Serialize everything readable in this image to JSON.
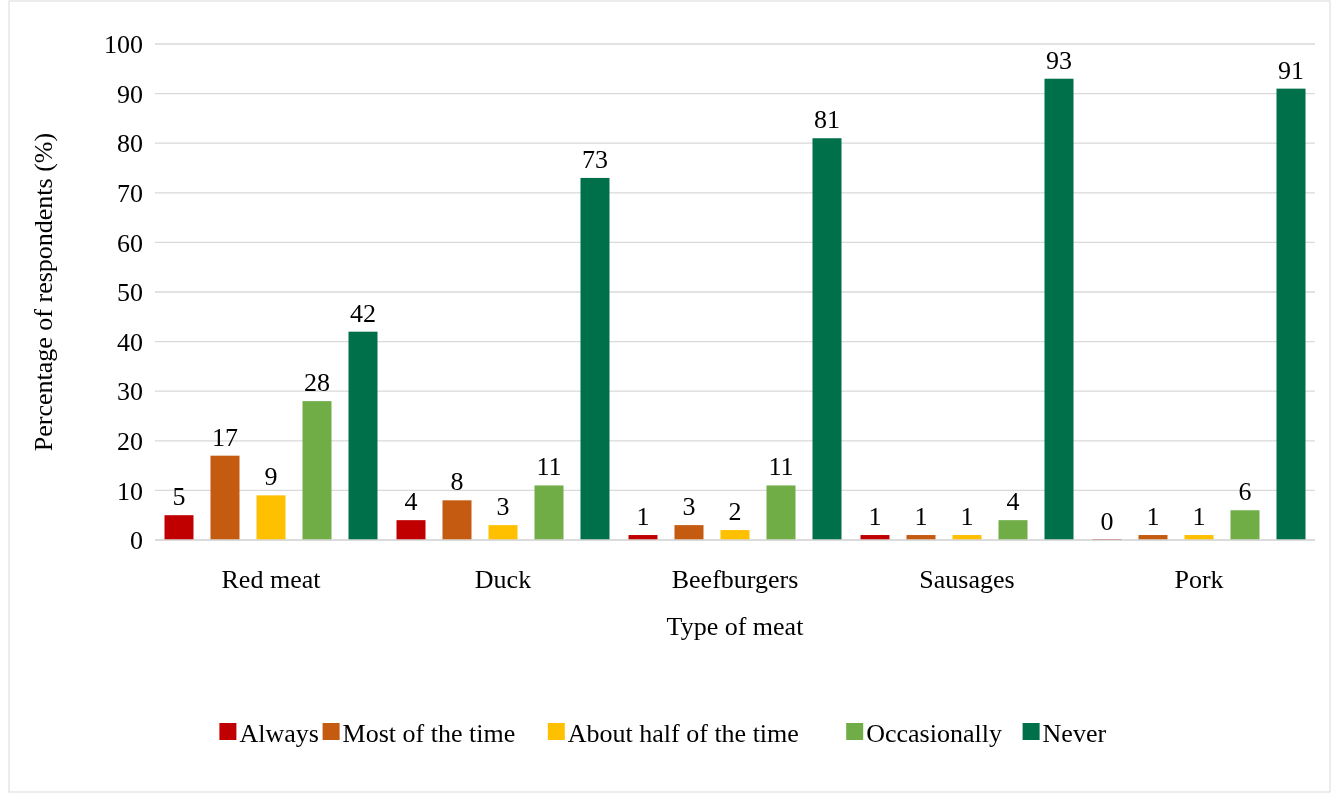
{
  "chart_data": {
    "type": "bar",
    "xlabel": "Type of meat",
    "ylabel": "Percentage of respondents (%)",
    "categories": [
      "Red meat",
      "Duck",
      "Beefburgers",
      "Sausages",
      "Pork"
    ],
    "series": [
      {
        "name": "Always",
        "color": "#c00000",
        "values": [
          5,
          4,
          1,
          1,
          0
        ]
      },
      {
        "name": "Most of the time",
        "color": "#c55a11",
        "values": [
          17,
          8,
          3,
          1,
          1
        ]
      },
      {
        "name": "About half of the time",
        "color": "#ffc000",
        "values": [
          9,
          3,
          2,
          1,
          1
        ]
      },
      {
        "name": "Occasionally",
        "color": "#70ad47",
        "values": [
          28,
          11,
          11,
          4,
          6
        ]
      },
      {
        "name": "Never",
        "color": "#00704a",
        "values": [
          42,
          73,
          81,
          93,
          91
        ]
      }
    ],
    "ylim": [
      0,
      100
    ],
    "yticks": [
      0,
      10,
      20,
      30,
      40,
      50,
      60,
      70,
      80,
      90,
      100
    ],
    "grid": "y",
    "legend": "bottom",
    "data_labels": true
  }
}
